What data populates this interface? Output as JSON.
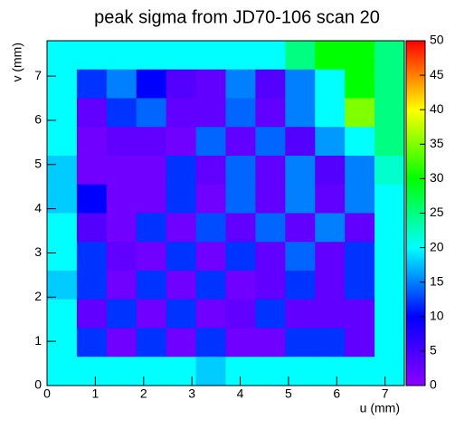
{
  "chart_data": {
    "type": "heatmap",
    "title": "peak sigma from JD70-106 scan 20",
    "x_label": "u (mm)",
    "y_label": "v (mm)",
    "xlim": [
      0,
      7.4
    ],
    "ylim": [
      0,
      7.8
    ],
    "xticks": [
      0,
      1,
      2,
      3,
      4,
      5,
      6,
      7
    ],
    "yticks": [
      0,
      1,
      2,
      3,
      4,
      5,
      6,
      7
    ],
    "zlim": [
      0,
      50
    ],
    "zticks": [
      0,
      5,
      10,
      15,
      20,
      25,
      30,
      35,
      40,
      45,
      50
    ],
    "colorscale": [
      "#8c00ff",
      "#0000ff",
      "#00ffff",
      "#00ff00",
      "#ffff00",
      "#ff0000"
    ],
    "z": [
      [
        20,
        20,
        20,
        20,
        20,
        20,
        20,
        20,
        25,
        30,
        30,
        25
      ],
      [
        20,
        12,
        15,
        10,
        4,
        3,
        15,
        4,
        15,
        20,
        30,
        25
      ],
      [
        20,
        3,
        12,
        14,
        3,
        3,
        14,
        3,
        15,
        20,
        35,
        25
      ],
      [
        20,
        2,
        3,
        3,
        2,
        14,
        3,
        14,
        4,
        16,
        20,
        25
      ],
      [
        18,
        2,
        2,
        2,
        12,
        3,
        14,
        3,
        15,
        4,
        15,
        22
      ],
      [
        18,
        10,
        2,
        2,
        12,
        2,
        14,
        3,
        15,
        3,
        15,
        20
      ],
      [
        20,
        4,
        2,
        12,
        2,
        13,
        3,
        14,
        3,
        15,
        3,
        20
      ],
      [
        20,
        12,
        3,
        2,
        12,
        2,
        12,
        3,
        14,
        3,
        12,
        20
      ],
      [
        18,
        12,
        2,
        12,
        2,
        12,
        2,
        3,
        12,
        3,
        12,
        20
      ],
      [
        20,
        3,
        12,
        2,
        12,
        2,
        3,
        12,
        3,
        3,
        3,
        20
      ],
      [
        20,
        12,
        2,
        12,
        2,
        12,
        2,
        2,
        12,
        12,
        3,
        20
      ],
      [
        20,
        20,
        20,
        20,
        20,
        18,
        20,
        20,
        20,
        20,
        20,
        20
      ]
    ]
  }
}
